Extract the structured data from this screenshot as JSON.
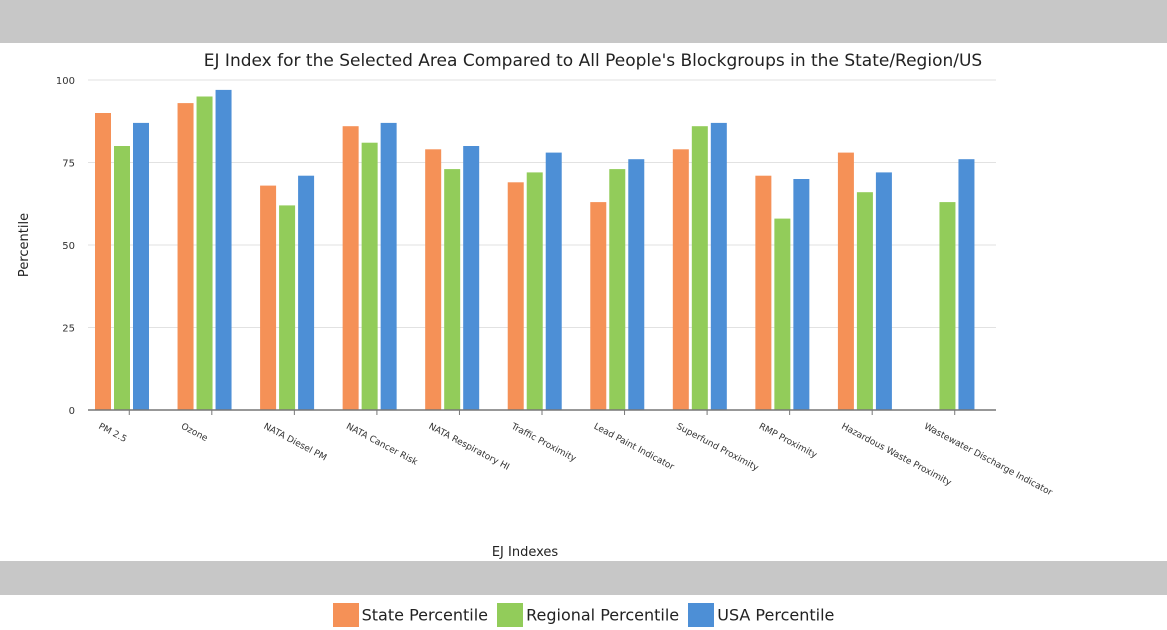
{
  "chart_data": {
    "type": "bar",
    "title": "EJ Index for the Selected Area Compared to All People's Blockgroups in the State/Region/US",
    "xlabel": "EJ Indexes",
    "ylabel": "Percentile",
    "ylim": [
      0,
      100
    ],
    "yticks": [
      0,
      25,
      50,
      75,
      100
    ],
    "grid": true,
    "legend_position": "bottom",
    "categories": [
      "PM 2.5",
      "Ozone",
      "NATA Diesel PM",
      "NATA Cancer Risk",
      "NATA Respiratory HI",
      "Traffic Proximity",
      "Lead Paint Indicator",
      "Superfund Proximity",
      "RMP Proximity",
      "Hazardous Waste Proximity",
      "Wastewater Discharge Indicator"
    ],
    "series": [
      {
        "name": "State Percentile",
        "color": "#f59157",
        "values": [
          90,
          93,
          68,
          86,
          79,
          69,
          63,
          79,
          71,
          78,
          null
        ]
      },
      {
        "name": "Regional Percentile",
        "color": "#92cc5a",
        "values": [
          80,
          95,
          62,
          81,
          73,
          72,
          73,
          86,
          58,
          66,
          63
        ]
      },
      {
        "name": "USA Percentile",
        "color": "#4d8fd6",
        "values": [
          87,
          97,
          71,
          87,
          80,
          78,
          76,
          87,
          70,
          72,
          76
        ]
      }
    ]
  }
}
